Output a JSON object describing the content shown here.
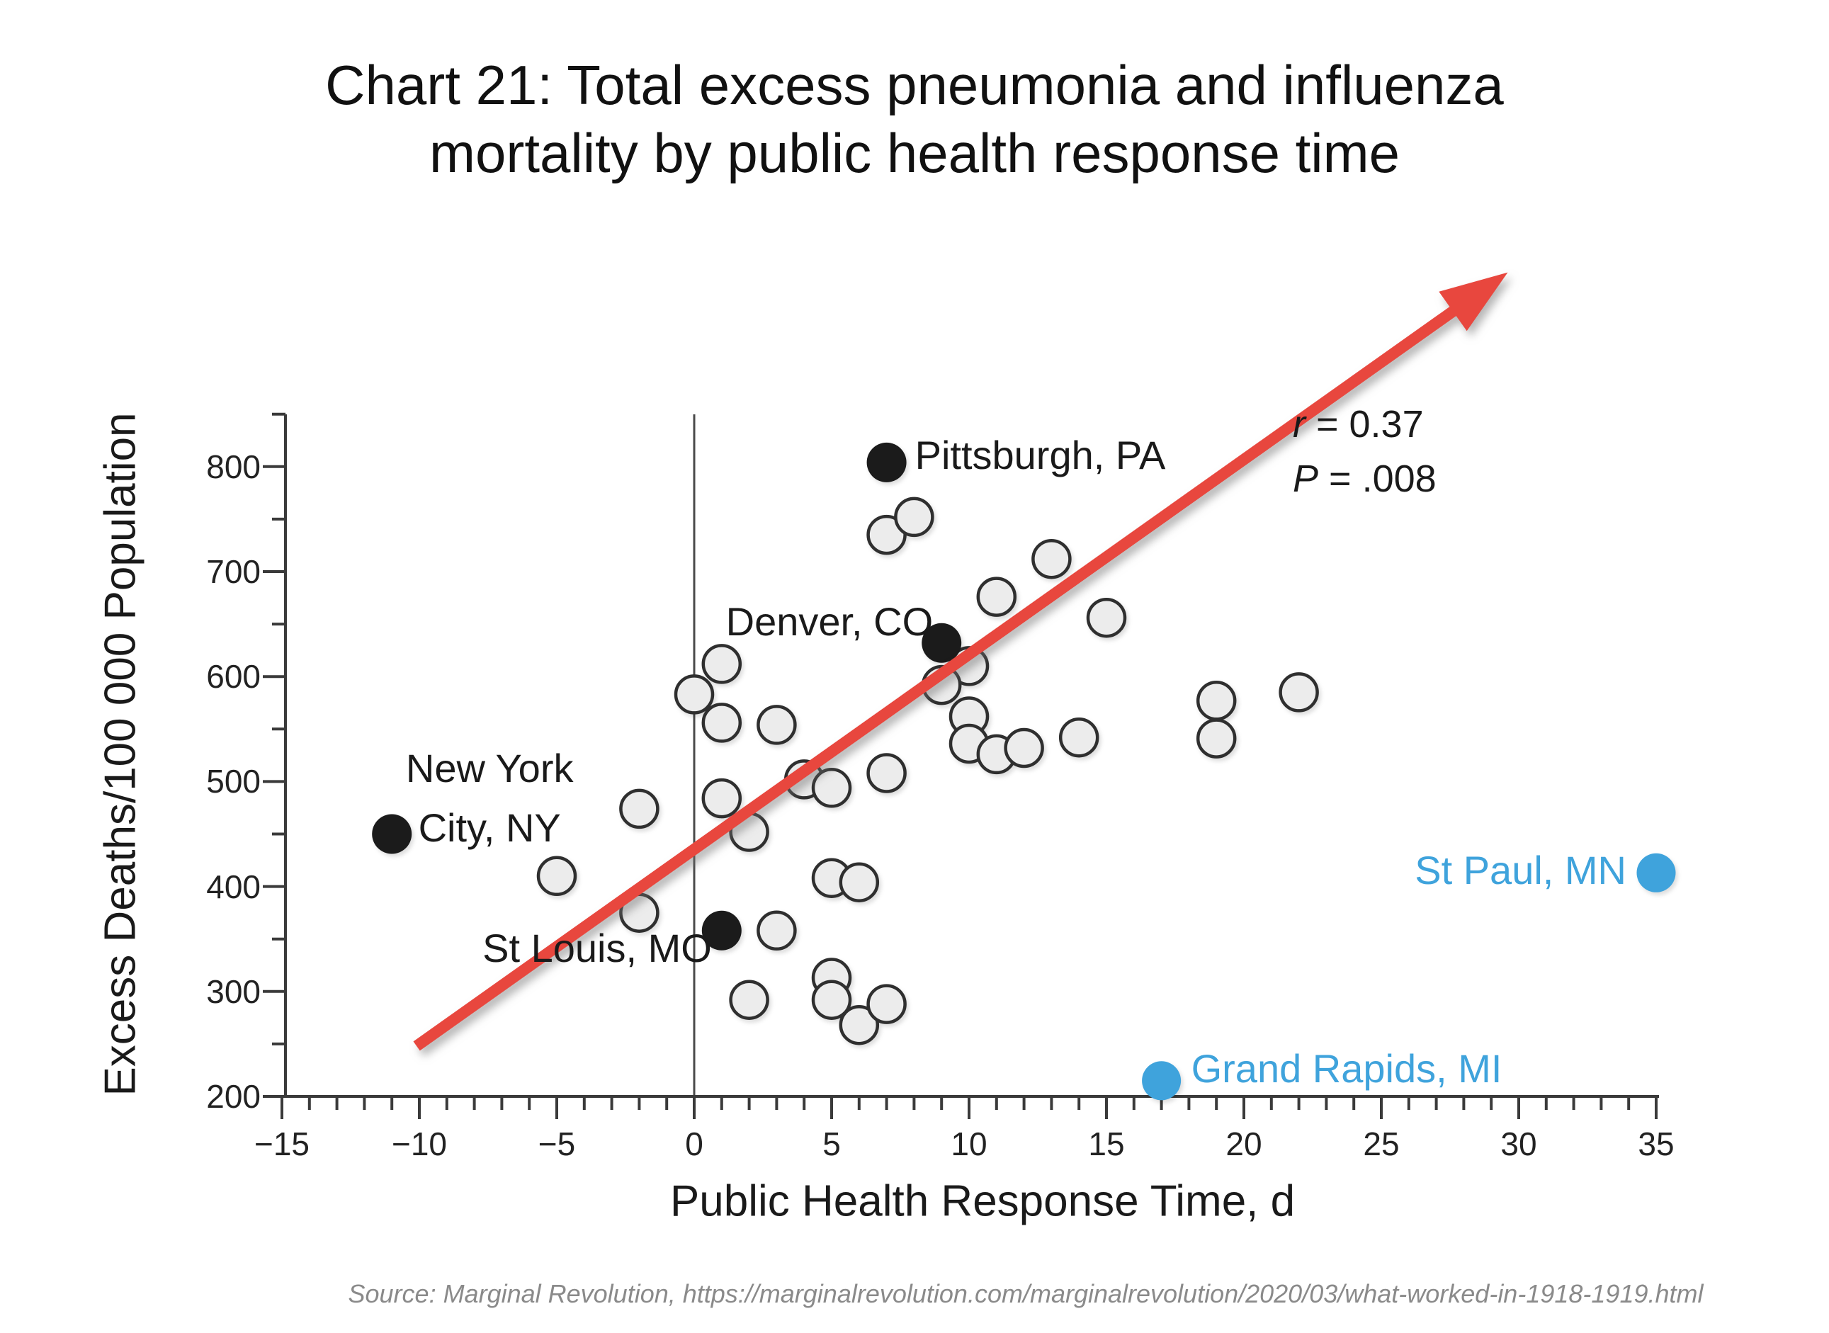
{
  "title": {
    "line1": "Chart 21: Total excess pneumonia and influenza",
    "line2": "mortality by public health response time"
  },
  "source": "Source: Marginal Revolution, https://marginalrevolution.com/marginalrevolution/2020/03/what-worked-in-1918-1919.html",
  "colors": {
    "highlight_blue": "#3fa3dc",
    "point_black": "#1b1b1b",
    "gray_fill": "#ececec",
    "gray_stroke": "#2f2f2f",
    "arrow_red": "#e8473e",
    "axis": "#3a3a3a",
    "zero_line": "#4a4a4a"
  },
  "chart_data": {
    "type": "scatter",
    "xlabel": "Public Health Response Time, d",
    "ylabel": "Excess Deaths/100 000 Population",
    "xlim": [
      -15,
      35
    ],
    "ylim": [
      200,
      850
    ],
    "grid": false,
    "x_ticks": {
      "values": [
        -15,
        -10,
        -5,
        0,
        5,
        10,
        15,
        20,
        25,
        30,
        35
      ],
      "labels": [
        "−15",
        "−10",
        "−5",
        "0",
        "5",
        "10",
        "15",
        "20",
        "25",
        "30",
        "35"
      ],
      "minor_step": 1
    },
    "y_ticks": {
      "values": [
        200,
        300,
        400,
        500,
        600,
        700,
        800
      ],
      "labels": [
        "200",
        "300",
        "400",
        "500",
        "600",
        "700",
        "800"
      ],
      "minor_step": 50
    },
    "zero_reference_line_x": 0,
    "correlation": {
      "r_var": "r",
      "r_rest": " = 0.37",
      "p_var": "P",
      "p_rest": " = .008"
    },
    "trend_arrow": {
      "x_start": -10.1,
      "y_start": 248,
      "x_end": 29.6,
      "y_end": 985
    },
    "unlabeled_cities": {
      "marker": "open-circle",
      "points": [
        [
          7,
          735
        ],
        [
          8,
          752
        ],
        [
          11,
          676
        ],
        [
          13,
          712
        ],
        [
          15,
          656
        ],
        [
          10,
          610
        ],
        [
          9,
          592
        ],
        [
          10,
          562
        ],
        [
          10,
          536
        ],
        [
          11,
          526
        ],
        [
          12,
          532
        ],
        [
          14,
          542
        ],
        [
          19,
          577
        ],
        [
          19,
          541
        ],
        [
          22,
          585
        ],
        [
          1,
          612
        ],
        [
          0,
          583
        ],
        [
          1,
          556
        ],
        [
          3,
          554
        ],
        [
          4,
          502
        ],
        [
          5,
          494
        ],
        [
          7,
          508
        ],
        [
          1,
          484
        ],
        [
          2,
          452
        ],
        [
          5,
          408
        ],
        [
          6,
          404
        ],
        [
          -2,
          474
        ],
        [
          -5,
          410
        ],
        [
          -2,
          375
        ],
        [
          3,
          358
        ],
        [
          5,
          313
        ],
        [
          5,
          292
        ],
        [
          2,
          292
        ],
        [
          6,
          268
        ],
        [
          7,
          288
        ]
      ]
    },
    "labeled_cities": [
      {
        "name": "New York City, NY",
        "label_lines": [
          "New York",
          "City, NY"
        ],
        "x": -11,
        "y": 450,
        "style": "black"
      },
      {
        "name": "St Louis, MO",
        "label_lines": [
          "St Louis, MO"
        ],
        "x": 1,
        "y": 358,
        "style": "black"
      },
      {
        "name": "Denver, CO",
        "label_lines": [
          "Denver, CO"
        ],
        "x": 9,
        "y": 632,
        "style": "black"
      },
      {
        "name": "Pittsburgh, PA",
        "label_lines": [
          "Pittsburgh, PA"
        ],
        "x": 7,
        "y": 804,
        "style": "black"
      },
      {
        "name": "St Paul, MN",
        "label_lines": [
          "St Paul, MN"
        ],
        "x": 35,
        "y": 413,
        "style": "blue"
      },
      {
        "name": "Grand Rapids, MI",
        "label_lines": [
          "Grand Rapids, MI"
        ],
        "x": 17,
        "y": 215,
        "style": "blue"
      }
    ]
  }
}
